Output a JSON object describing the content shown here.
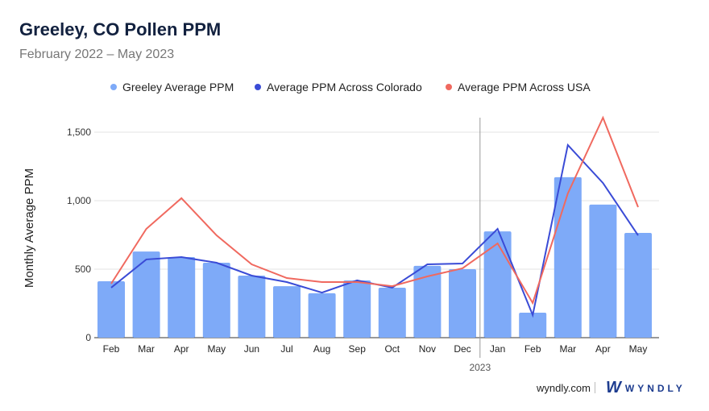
{
  "chart_data": {
    "type": "bar",
    "title": "Greeley, CO Pollen PPM",
    "subtitle": "February 2022 – May 2023",
    "ylabel": "Monthly Average PPM",
    "xlabel": "",
    "ylim": [
      0,
      1600
    ],
    "yticks": [
      0,
      500,
      1000,
      1500
    ],
    "ytick_labels": [
      "0",
      "500",
      "1,000",
      "1,500"
    ],
    "categories": [
      "Feb",
      "Mar",
      "Apr",
      "May",
      "Jun",
      "Jul",
      "Aug",
      "Sep",
      "Oct",
      "Nov",
      "Dec",
      "Jan",
      "Feb",
      "Mar",
      "Apr",
      "May"
    ],
    "year_marker": {
      "label": "2023",
      "before_index": 11
    },
    "legend_position": "top",
    "series": [
      {
        "name": "Greeley Average PPM",
        "type": "bar",
        "color": "#7eaaf8",
        "values": [
          412,
          629,
          588,
          547,
          453,
          376,
          324,
          418,
          365,
          524,
          500,
          776,
          182,
          1171,
          971,
          765
        ]
      },
      {
        "name": "Average PPM Across Colorado",
        "type": "line",
        "color": "#3a4bd6",
        "values": [
          365,
          571,
          588,
          547,
          453,
          406,
          329,
          418,
          365,
          535,
          541,
          794,
          165,
          1406,
          1129,
          747
        ]
      },
      {
        "name": "Average PPM Across USA",
        "type": "line",
        "color": "#f0695f",
        "values": [
          394,
          794,
          1018,
          747,
          535,
          435,
          406,
          406,
          376,
          447,
          506,
          688,
          253,
          1053,
          1606,
          953
        ]
      }
    ]
  },
  "footer": {
    "site": "wyndly.com",
    "logo_mark": "W",
    "logo_text": "WYNDLY"
  }
}
